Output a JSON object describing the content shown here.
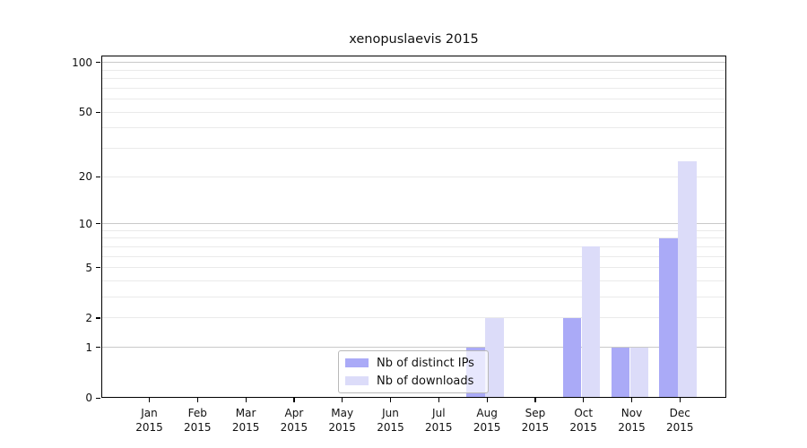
{
  "chart_data": {
    "type": "bar",
    "title": "xenopuslaevis 2015",
    "categories": [
      "Jan",
      "Feb",
      "Mar",
      "Apr",
      "May",
      "Jun",
      "Jul",
      "Aug",
      "Sep",
      "Oct",
      "Nov",
      "Dec"
    ],
    "category_year": "2015",
    "series": [
      {
        "name": "Nb of distinct IPs",
        "color": "#aaaaf7",
        "values": [
          0,
          0,
          0,
          0,
          0,
          0,
          0,
          1,
          0,
          2,
          1,
          8
        ]
      },
      {
        "name": "Nb of downloads",
        "color": "#dcdcf9",
        "values": [
          0,
          0,
          0,
          0,
          0,
          0,
          0,
          2,
          0,
          7,
          1,
          25
        ]
      }
    ],
    "yscale": "log1p",
    "ylim": [
      0,
      110
    ],
    "ytick_labels": [
      0,
      1,
      2,
      5,
      10,
      20,
      50,
      100
    ],
    "major_gridlines": [
      1,
      10,
      100
    ],
    "minor_gridlines": [
      2,
      3,
      4,
      5,
      6,
      7,
      8,
      9,
      20,
      30,
      40,
      50,
      60,
      70,
      80,
      90
    ],
    "grid": true,
    "legend_position": "lower center",
    "colors": {
      "major_grid": "#c9c9c9",
      "minor_grid": "#eaeaea",
      "axis": "#000000",
      "text": "#111111",
      "background": "#ffffff"
    }
  }
}
